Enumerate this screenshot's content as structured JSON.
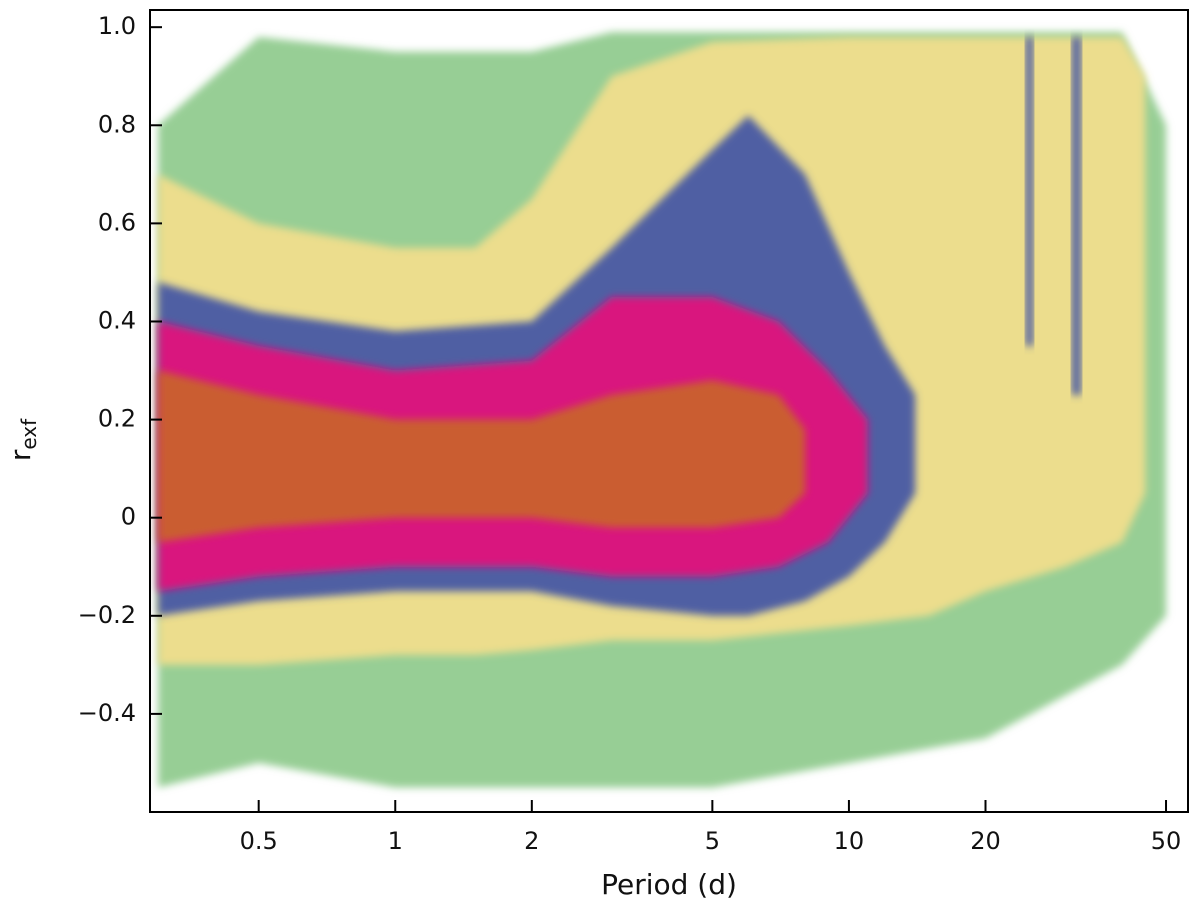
{
  "chart_data": {
    "type": "density-bands",
    "xlabel": "Period (d)",
    "ylabel": "r",
    "ylabel_sub": "exf",
    "xscale": "log",
    "xlim": [
      0.288,
      55.9
    ],
    "ylim": [
      -0.6,
      1.035
    ],
    "xticks": [
      0.5,
      1,
      2,
      5,
      10,
      20,
      50
    ],
    "yticks": [
      {
        "value": -0.4,
        "label": "−0.4"
      },
      {
        "value": -0.2,
        "label": "−0.2"
      },
      0,
      0.2,
      0.4,
      0.6,
      0.8,
      {
        "value": 1,
        "label": "1.0"
      }
    ],
    "series": [
      {
        "color": "#8cc98a",
        "x": [
          0.3,
          0.5,
          1,
          2,
          3,
          5,
          10,
          20,
          40,
          50
        ],
        "low": [
          -0.55,
          -0.5,
          -0.55,
          -0.55,
          -0.55,
          -0.55,
          -0.5,
          -0.45,
          -0.3,
          -0.2
        ],
        "high": [
          0.8,
          0.98,
          0.95,
          0.95,
          0.99,
          0.99,
          0.99,
          0.99,
          0.99,
          0.8
        ]
      },
      {
        "color": "#f5df8c",
        "x": [
          0.3,
          0.5,
          1,
          1.5,
          2,
          3,
          5,
          10,
          15,
          20,
          30,
          40,
          45
        ],
        "low": [
          -0.3,
          -0.3,
          -0.28,
          -0.28,
          -0.27,
          -0.25,
          -0.25,
          -0.22,
          -0.2,
          -0.15,
          -0.1,
          -0.05,
          0.05
        ],
        "high": [
          0.7,
          0.6,
          0.55,
          0.55,
          0.65,
          0.9,
          0.97,
          0.98,
          0.98,
          0.98,
          0.98,
          0.98,
          0.9
        ]
      },
      {
        "color": "#3f51a5",
        "x": [
          0.3,
          0.5,
          1,
          2,
          3,
          5,
          6,
          8,
          10,
          12,
          14
        ],
        "low": [
          -0.2,
          -0.17,
          -0.15,
          -0.15,
          -0.18,
          -0.2,
          -0.2,
          -0.17,
          -0.12,
          -0.05,
          0.05
        ],
        "high": [
          0.48,
          0.42,
          0.38,
          0.4,
          0.55,
          0.75,
          0.82,
          0.7,
          0.5,
          0.35,
          0.25
        ]
      },
      {
        "color": "#3f51a5",
        "x": [
          24.5,
          25.5
        ],
        "low": [
          0.35,
          0.35
        ],
        "high": [
          0.98,
          0.98
        ]
      },
      {
        "color": "#3f51a5",
        "x": [
          31,
          32.5
        ],
        "low": [
          0.25,
          0.25
        ],
        "high": [
          0.98,
          0.98
        ]
      },
      {
        "color": "#e8117a",
        "x": [
          0.3,
          0.5,
          1,
          2,
          3,
          5,
          7,
          9,
          11
        ],
        "low": [
          -0.15,
          -0.12,
          -0.1,
          -0.1,
          -0.12,
          -0.12,
          -0.1,
          -0.05,
          0.05
        ],
        "high": [
          0.4,
          0.35,
          0.3,
          0.32,
          0.45,
          0.45,
          0.4,
          0.3,
          0.2
        ]
      },
      {
        "color": "#c9652a",
        "x": [
          0.3,
          0.5,
          1,
          2,
          3,
          5,
          7,
          8
        ],
        "low": [
          -0.05,
          -0.02,
          0,
          0,
          -0.02,
          -0.02,
          0,
          0.05
        ],
        "high": [
          0.3,
          0.25,
          0.2,
          0.2,
          0.25,
          0.28,
          0.25,
          0.18
        ]
      }
    ]
  }
}
